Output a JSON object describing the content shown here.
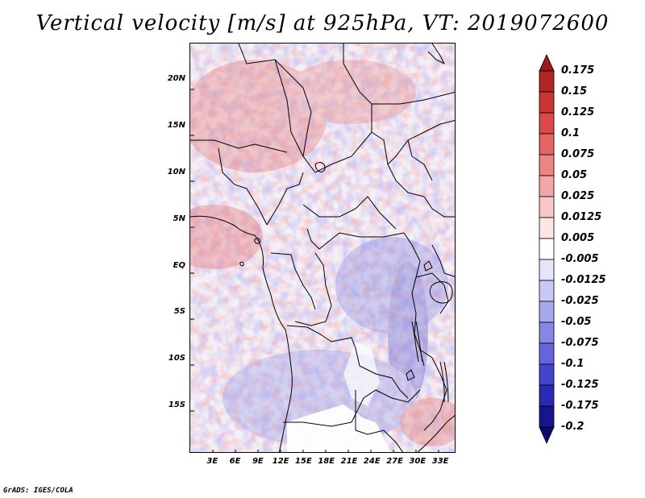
{
  "title": "Vertical velocity [m/s] at 925hPa, VT: 2019072600",
  "credit": "GrADS: IGES/COLA",
  "chart_data": {
    "type": "heatmap",
    "variable": "Vertical velocity",
    "units": "m/s",
    "level": "925hPa",
    "valid_time": "2019072600",
    "lon_range": [
      0,
      35
    ],
    "lat_range": [
      -20,
      24
    ],
    "lat_ticks": [
      "20N",
      "15N",
      "10N",
      "5N",
      "EQ",
      "5S",
      "10S",
      "15S"
    ],
    "lat_tick_values": [
      20,
      15,
      10,
      5,
      0,
      -5,
      -10,
      -15
    ],
    "lon_ticks": [
      "3E",
      "6E",
      "9E",
      "12E",
      "15E",
      "18E",
      "21E",
      "24E",
      "27E",
      "30E",
      "33E"
    ],
    "lon_tick_values": [
      3,
      6,
      9,
      12,
      15,
      18,
      21,
      24,
      27,
      30,
      33
    ],
    "colorbar_labels": [
      "0.175",
      "0.15",
      "0.125",
      "0.1",
      "0.075",
      "0.05",
      "0.025",
      "0.0125",
      "0.005",
      "-0.005",
      "-0.0125",
      "-0.025",
      "-0.05",
      "-0.075",
      "-0.1",
      "-0.125",
      "-0.175",
      "-0.2"
    ],
    "colorbar_colors": [
      "#9e1a1a",
      "#b52424",
      "#c93535",
      "#dc4848",
      "#e56464",
      "#ed8484",
      "#f3a6a6",
      "#f8c8c8",
      "#fce6e6",
      "#ffffff",
      "#e4e4fa",
      "#c8c8f4",
      "#a8a8ee",
      "#8686e6",
      "#6464dc",
      "#4444cc",
      "#2a2ab4",
      "#16168c",
      "#0a0a6e"
    ]
  }
}
